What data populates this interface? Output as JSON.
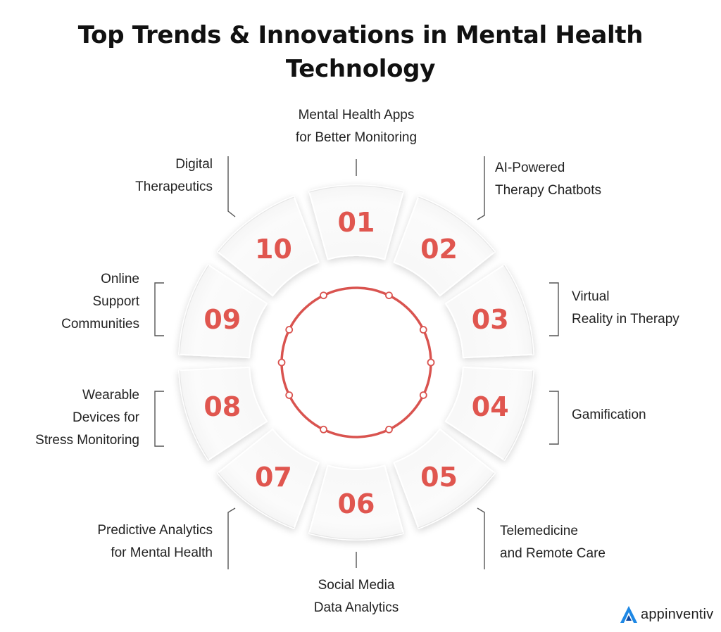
{
  "title": {
    "line1": "Top Trends & Innovations in Mental Health",
    "line2": "Technology"
  },
  "segments": [
    {
      "number": "01",
      "label": [
        "Mental Health Apps",
        "for Better Monitoring"
      ]
    },
    {
      "number": "02",
      "label": [
        "AI-Powered",
        "Therapy Chatbots"
      ]
    },
    {
      "number": "03",
      "label": [
        "Virtual",
        "Reality in Therapy"
      ]
    },
    {
      "number": "04",
      "label": [
        "Gamification"
      ]
    },
    {
      "number": "05",
      "label": [
        "Telemedicine",
        "and Remote Care"
      ]
    },
    {
      "number": "06",
      "label": [
        "Social Media",
        "Data Analytics"
      ]
    },
    {
      "number": "07",
      "label": [
        "Predictive Analytics",
        "for Mental Health"
      ]
    },
    {
      "number": "08",
      "label": [
        "Wearable",
        "Devices for",
        "Stress Monitoring"
      ]
    },
    {
      "number": "09",
      "label": [
        "Online",
        "Support",
        "Communities"
      ]
    },
    {
      "number": "10",
      "label": [
        "Digital",
        "Therapeutics"
      ]
    }
  ],
  "brand": {
    "name": "appinventiv",
    "logo_icon": "appinventiv-logo-icon"
  },
  "colors": {
    "accent": "#e0564f",
    "ring": "#d9534f",
    "text": "#1a1a1a",
    "connector": "#555555",
    "logo_blue": "#1e88e5"
  }
}
